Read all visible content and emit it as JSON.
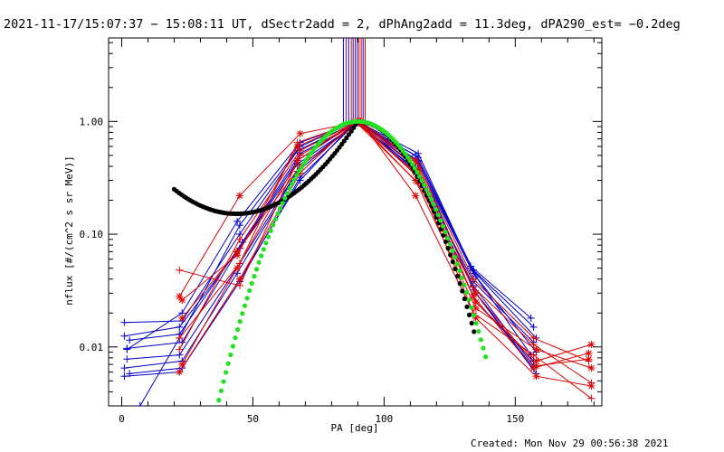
{
  "chart_data": {
    "type": "line",
    "title": "2021-11-17/15:07:37 − 15:08:11 UT, dSectr2add = 2, dPhAng2add = 11.3deg, dPA290_est= −0.2deg",
    "xlabel": "PA [deg]",
    "ylabel": "nflux [#/(cm^2 s sr MeV)]",
    "footer": "Created: Mon Nov 29 00:56:38 2021",
    "xlim": [
      -5,
      183
    ],
    "ylim": [
      0.003,
      5.5
    ],
    "y_scale": "log",
    "grid": false,
    "x_ticks": [
      0,
      50,
      100,
      150
    ],
    "x_tick_labels": [
      "0",
      "50",
      "100",
      "150"
    ],
    "y_ticks": [
      0.01,
      0.1,
      1.0
    ],
    "y_tick_labels": [
      "0.01",
      "0.10",
      "1.00"
    ],
    "colors": {
      "blue": "#0000cc",
      "red": "#dd0000",
      "black": "#000000",
      "green": "#22e022"
    },
    "vertical_lines": {
      "y_range": [
        0.9,
        5.5
      ],
      "lines": [
        {
          "x": 84.5,
          "color": "blue"
        },
        {
          "x": 85.5,
          "color": "purple"
        },
        {
          "x": 86.5,
          "color": "blue"
        },
        {
          "x": 87.5,
          "color": "red"
        },
        {
          "x": 88.2,
          "color": "blue"
        },
        {
          "x": 89.0,
          "color": "purple"
        },
        {
          "x": 89.8,
          "color": "blue"
        },
        {
          "x": 90.5,
          "color": "red"
        },
        {
          "x": 91.3,
          "color": "red"
        },
        {
          "x": 92.0,
          "color": "blue"
        },
        {
          "x": 92.8,
          "color": "red"
        }
      ]
    },
    "series": [
      {
        "color": "blue",
        "marker": "plus",
        "x": [
          1,
          22,
          45,
          68,
          89,
          112,
          134,
          157
        ],
        "y": [
          0.0055,
          0.006,
          0.04,
          0.3,
          1.0,
          0.38,
          0.038,
          0.011
        ]
      },
      {
        "color": "blue",
        "marker": "plus",
        "x": [
          1,
          23,
          44,
          67,
          90,
          113,
          134,
          158
        ],
        "y": [
          0.0065,
          0.0075,
          0.045,
          0.36,
          1.0,
          0.42,
          0.045,
          0.009
        ]
      },
      {
        "color": "blue",
        "marker": "plus",
        "x": [
          2,
          22,
          45,
          68,
          90,
          112,
          135,
          157
        ],
        "y": [
          0.0078,
          0.0085,
          0.055,
          0.4,
          1.0,
          0.35,
          0.03,
          0.0065
        ]
      },
      {
        "color": "blue",
        "marker": "plus",
        "x": [
          2,
          23,
          44,
          67,
          89,
          113,
          133,
          158
        ],
        "y": [
          0.0097,
          0.011,
          0.07,
          0.45,
          1.0,
          0.45,
          0.05,
          0.012
        ]
      },
      {
        "color": "blue",
        "marker": "plus",
        "x": [
          3,
          22,
          46,
          68,
          91,
          112,
          134,
          157
        ],
        "y": [
          0.0115,
          0.013,
          0.085,
          0.52,
          1.0,
          0.4,
          0.035,
          0.0068
        ]
      },
      {
        "color": "blue",
        "marker": "plus",
        "x": [
          1,
          23,
          45,
          67,
          90,
          113,
          135,
          156
        ],
        "y": [
          0.0165,
          0.017,
          0.1,
          0.55,
          1.0,
          0.48,
          0.042,
          0.0085
        ]
      },
      {
        "color": "blue",
        "marker": "plus",
        "x": [
          7,
          22,
          45,
          68,
          89,
          112,
          134,
          157
        ],
        "y": [
          0.003,
          0.012,
          0.12,
          0.6,
          1.0,
          0.5,
          0.048,
          0.015
        ]
      },
      {
        "color": "blue",
        "marker": "plus",
        "x": [
          2,
          23,
          44,
          68,
          90,
          113,
          134,
          158
        ],
        "y": [
          0.0095,
          0.02,
          0.13,
          0.65,
          1.0,
          0.44,
          0.032,
          0.0058
        ]
      },
      {
        "color": "blue",
        "marker": "plus",
        "x": [
          1,
          22,
          45,
          67,
          91,
          112,
          135,
          157
        ],
        "y": [
          0.0125,
          0.015,
          0.075,
          0.42,
          1.0,
          0.36,
          0.025,
          0.0075
        ]
      },
      {
        "color": "blue",
        "marker": "plus",
        "x": [
          3,
          23,
          45,
          68,
          90,
          113,
          133,
          156
        ],
        "y": [
          0.0058,
          0.0065,
          0.038,
          0.32,
          1.0,
          0.52,
          0.052,
          0.018
        ]
      },
      {
        "color": "red",
        "marker": "asterisk",
        "x": [
          22,
          45,
          68,
          89,
          112,
          135,
          158,
          179
        ],
        "y": [
          0.006,
          0.04,
          0.35,
          1.0,
          0.3,
          0.022,
          0.0095,
          0.0065
        ]
      },
      {
        "color": "red",
        "marker": "asterisk",
        "x": [
          23,
          44,
          67,
          90,
          113,
          134,
          157,
          178
        ],
        "y": [
          0.007,
          0.05,
          0.45,
          1.0,
          0.38,
          0.028,
          0.0065,
          0.0088
        ]
      },
      {
        "color": "red",
        "marker": "asterisk",
        "x": [
          22,
          45,
          68,
          91,
          112,
          135,
          158,
          179
        ],
        "y": [
          0.028,
          0.22,
          0.78,
          1.0,
          0.22,
          0.018,
          0.0055,
          0.0045
        ]
      },
      {
        "color": "red",
        "marker": "plus",
        "x": [
          22,
          45,
          68,
          90,
          113,
          134,
          157,
          178
        ],
        "y": [
          0.048,
          0.035,
          0.5,
          1.0,
          0.42,
          0.04,
          0.012,
          0.0075
        ]
      },
      {
        "color": "red",
        "marker": "asterisk",
        "x": [
          23,
          44,
          67,
          89,
          112,
          135,
          158,
          179
        ],
        "y": [
          0.026,
          0.065,
          0.6,
          1.0,
          0.35,
          0.025,
          0.0075,
          0.0105
        ]
      },
      {
        "color": "red",
        "marker": "plus",
        "x": [
          22,
          45,
          68,
          90,
          113,
          134,
          157,
          179
        ],
        "y": [
          0.0095,
          0.09,
          0.55,
          1.0,
          0.32,
          0.02,
          0.0085,
          0.0035
        ]
      },
      {
        "color": "red",
        "marker": "asterisk",
        "x": [
          23,
          44,
          68,
          91,
          112,
          135,
          158,
          178
        ],
        "y": [
          0.018,
          0.07,
          0.4,
          1.0,
          0.45,
          0.03,
          0.0068,
          0.0078
        ]
      },
      {
        "color": "red",
        "marker": "plus",
        "x": [
          22,
          45,
          67,
          90,
          113,
          134,
          157,
          179
        ],
        "y": [
          0.012,
          0.055,
          0.65,
          1.0,
          0.28,
          0.034,
          0.0105,
          0.0048
        ]
      }
    ],
    "fit_curves": [
      {
        "color": "black",
        "style": "dotted-thick",
        "x_range": [
          20,
          135
        ],
        "type": "black_fit"
      },
      {
        "color": "green",
        "style": "dotted-thick",
        "x_range": [
          37,
          139
        ],
        "type": "green_fit"
      }
    ]
  }
}
